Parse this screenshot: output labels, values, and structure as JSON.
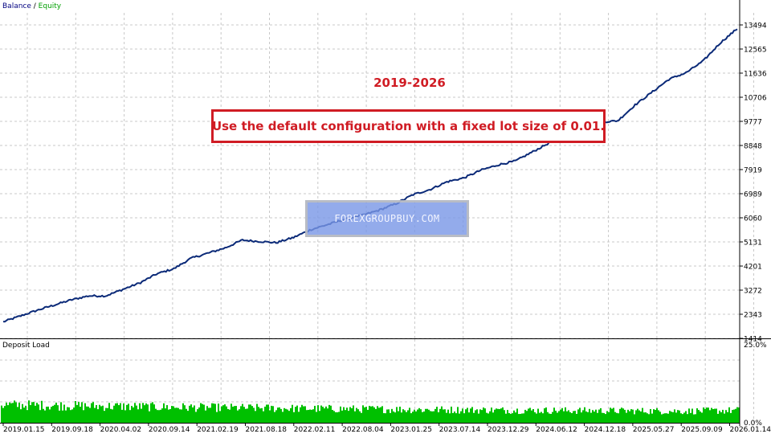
{
  "legend": {
    "balance": "Balance",
    "separator": " / ",
    "equity": "Equity"
  },
  "annotations": {
    "years": "2019-2026",
    "note": "Use the default configuration with a fixed lot size of 0.01.",
    "watermark": "FOREXGROUPBUY.COM"
  },
  "colors": {
    "balance": "#0b2a78",
    "deposit_load": "#00c000",
    "note": "#d01c24",
    "grid": "#c8c8c8"
  },
  "chart_data": [
    {
      "type": "line",
      "series": [
        {
          "name": "Balance",
          "color": "#0b2a78"
        }
      ],
      "x_ticks": [
        "2019.01.15",
        "2019.09.18",
        "2020.04.02",
        "2020.09.14",
        "2021.02.19",
        "2021.08.18",
        "2022.02.11",
        "2022.08.04",
        "2023.01.25",
        "2023.07.14",
        "2023.12.29",
        "2024.06.12",
        "2024.12.18",
        "2025.05.27",
        "2025.09.09",
        "2026.01.14"
      ],
      "y_ticks": [
        1414,
        2343,
        3272,
        4201,
        5131,
        6060,
        6989,
        7919,
        8848,
        9777,
        10706,
        11636,
        12565,
        13494
      ],
      "ylim": [
        1414,
        13494
      ],
      "balance_points": [
        [
          0,
          2050
        ],
        [
          2,
          2500
        ],
        [
          4,
          2900
        ],
        [
          5,
          3050
        ],
        [
          6,
          3050
        ],
        [
          7,
          3300
        ],
        [
          8,
          3550
        ],
        [
          9,
          3900
        ],
        [
          10,
          4100
        ],
        [
          11,
          4500
        ],
        [
          12,
          4700
        ],
        [
          13,
          4900
        ],
        [
          14,
          5200
        ],
        [
          15,
          5150
        ],
        [
          16,
          5100
        ],
        [
          17,
          5300
        ],
        [
          18,
          5600
        ],
        [
          19,
          5800
        ],
        [
          20,
          6000
        ],
        [
          21,
          6150
        ],
        [
          22,
          6350
        ],
        [
          23,
          6600
        ],
        [
          24,
          6950
        ],
        [
          25,
          7150
        ],
        [
          26,
          7450
        ],
        [
          27,
          7600
        ],
        [
          28,
          7900
        ],
        [
          29,
          8100
        ],
        [
          30,
          8250
        ],
        [
          31,
          8600
        ],
        [
          32,
          8950
        ],
        [
          33,
          9400
        ],
        [
          34,
          9700
        ],
        [
          35,
          9750
        ],
        [
          36,
          9800
        ],
        [
          37,
          10400
        ],
        [
          38,
          10900
        ],
        [
          39,
          11400
        ],
        [
          40,
          11650
        ],
        [
          41,
          12100
        ],
        [
          42,
          12800
        ],
        [
          43,
          13350
        ]
      ],
      "grid": true
    },
    {
      "type": "bar",
      "title": "Deposit Load",
      "series": [
        {
          "name": "Deposit Load",
          "color": "#00c000"
        }
      ],
      "y_ticks": [
        "25.0%",
        "0.0%"
      ],
      "ylim": [
        0,
        25
      ],
      "load_profile": [
        [
          0,
          6.5
        ],
        [
          6,
          6.0
        ],
        [
          12,
          5.5
        ],
        [
          20,
          5.0
        ],
        [
          30,
          4.5
        ],
        [
          40,
          4.2
        ],
        [
          43,
          4.5
        ]
      ],
      "grid": true
    }
  ]
}
